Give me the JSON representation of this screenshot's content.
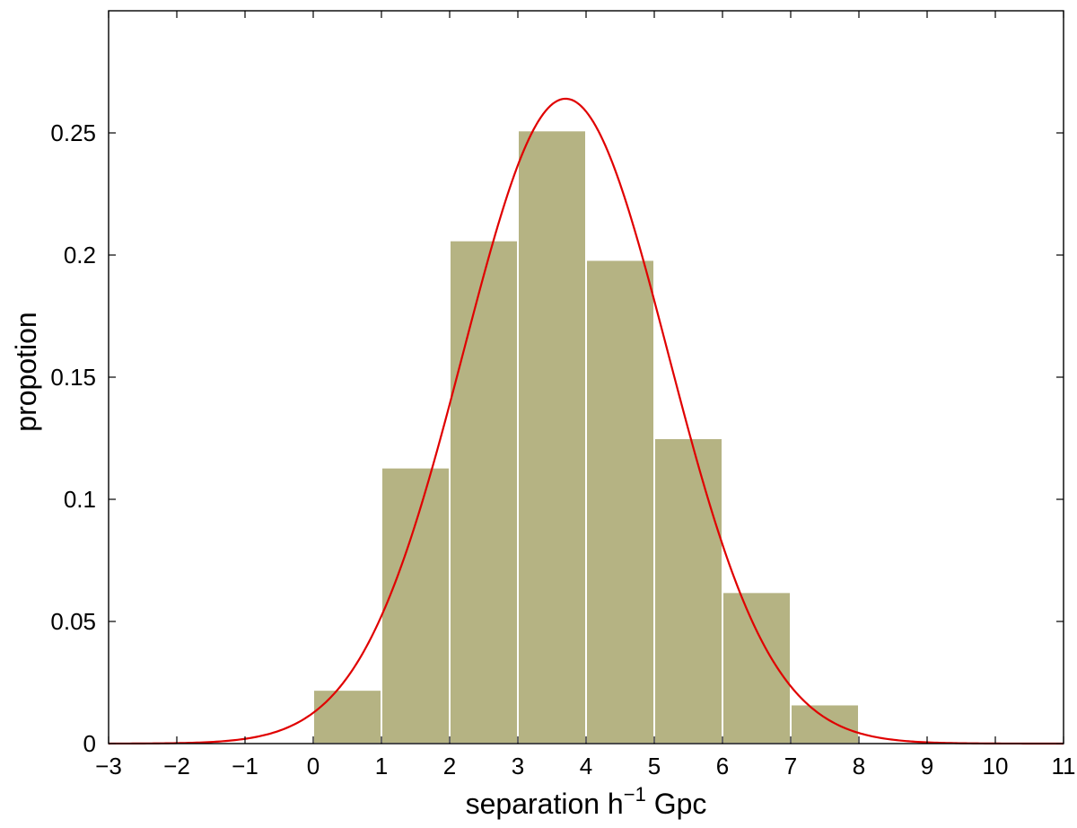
{
  "chart_data": {
    "type": "bar",
    "xlabel_main": "separation  h",
    "xlabel_sup": "−1",
    "xlabel_tail": " Gpc",
    "ylabel": "propotion",
    "xlim": [
      -3,
      11
    ],
    "ylim": [
      0,
      0.3
    ],
    "x_ticks": [
      -3,
      -2,
      -1,
      0,
      1,
      2,
      3,
      4,
      5,
      6,
      7,
      8,
      9,
      10,
      11
    ],
    "x_tick_labels": [
      "−3",
      "−2",
      "−1",
      "0",
      "1",
      "2",
      "3",
      "4",
      "5",
      "6",
      "7",
      "8",
      "9",
      "10",
      "11"
    ],
    "y_ticks": [
      0,
      0.05,
      0.1,
      0.15,
      0.2,
      0.25
    ],
    "y_tick_labels": [
      "0",
      "0.05",
      "0.1",
      "0.15",
      "0.2",
      "0.25"
    ],
    "bins": [
      {
        "x0": 0,
        "x1": 1,
        "value": 0.022
      },
      {
        "x0": 1,
        "x1": 2,
        "value": 0.113
      },
      {
        "x0": 2,
        "x1": 3,
        "value": 0.206
      },
      {
        "x0": 3,
        "x1": 4,
        "value": 0.251
      },
      {
        "x0": 4,
        "x1": 5,
        "value": 0.198
      },
      {
        "x0": 5,
        "x1": 6,
        "value": 0.125
      },
      {
        "x0": 6,
        "x1": 7,
        "value": 0.062
      },
      {
        "x0": 7,
        "x1": 8,
        "value": 0.016
      }
    ],
    "fit_curve": {
      "type": "gaussian",
      "mean": 3.7,
      "sigma": 1.5,
      "amplitude": 0.264
    },
    "grid": false,
    "colors": {
      "bar_fill": "#b5b383",
      "bar_edge": "#ffffff",
      "curve": "#e00000",
      "axis": "#000000"
    }
  }
}
